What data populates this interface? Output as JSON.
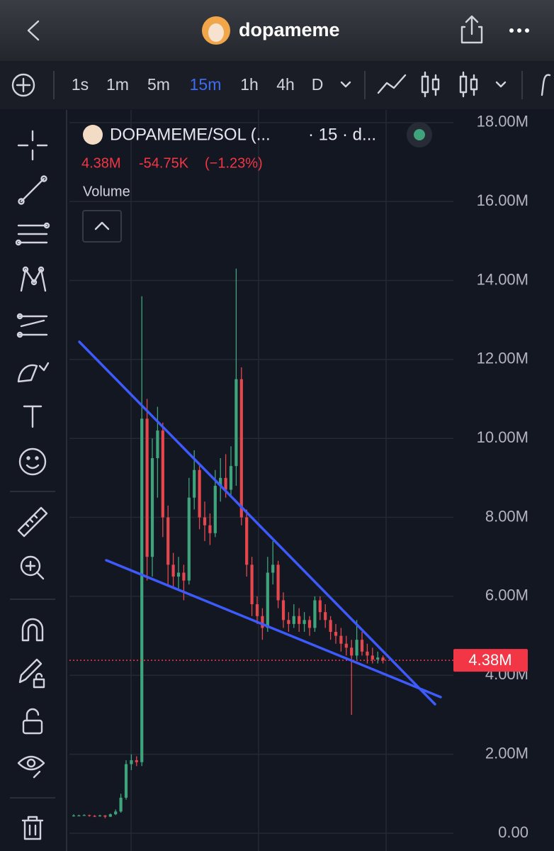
{
  "app": {
    "title": "dopameme",
    "timeframes": [
      "1s",
      "1m",
      "5m",
      "15m",
      "1h",
      "4h",
      "D"
    ],
    "active_timeframe": 3
  },
  "chart_header": {
    "symbol": "DOPAMEME/SOL (...",
    "interval": "· 15 · d...",
    "price": "4.38M",
    "change": "-54.75K",
    "change_percent": "(−1.23%)",
    "indicator": "Volume"
  },
  "chart_data": {
    "type": "candlestick",
    "up_color": "#3fa37c",
    "down_color": "#e5474d",
    "open": [
      440000,
      450000,
      450000,
      460000,
      440000,
      430000,
      450000,
      420000,
      480000,
      550000,
      900000,
      1750000,
      1850000,
      1800000,
      10500000,
      7000000,
      9500000,
      10200000,
      8000000,
      6800000,
      6500000,
      6600000,
      6400000,
      8500000,
      9200000,
      8000000,
      7800000,
      7600000,
      8800000,
      9000000,
      8700000,
      9300000,
      11500000,
      8000000,
      6800000,
      5800000,
      5500000,
      5200000,
      6600000,
      6800000,
      5900000,
      5400000,
      5300000,
      5500000,
      5300000,
      5400000,
      5200000,
      5900000,
      5600000,
      5400000,
      5100000,
      5000000,
      4800000,
      4700000,
      4500000,
      4900000,
      4600000,
      4500000,
      4400000,
      4450000
    ],
    "high": [
      480000,
      470000,
      480000,
      470000,
      460000,
      470000,
      460000,
      500000,
      600000,
      1000000,
      1850000,
      2000000,
      1950000,
      13600000,
      11000000,
      10000000,
      10800000,
      10400000,
      8300000,
      7100000,
      7000000,
      6800000,
      9000000,
      9700000,
      9300000,
      8400000,
      8100000,
      9200000,
      9500000,
      9600000,
      9800000,
      14300000,
      11800000,
      8200000,
      7000000,
      6000000,
      5700000,
      7000000,
      7400000,
      6900000,
      6100000,
      5600000,
      5800000,
      5700000,
      5600000,
      5500000,
      6000000,
      6000000,
      5800000,
      5500000,
      5300000,
      5200000,
      5000000,
      4900000,
      5400000,
      5100000,
      4800000,
      4700000,
      4600000,
      4500000
    ],
    "low": [
      420000,
      430000,
      440000,
      420000,
      410000,
      420000,
      380000,
      410000,
      460000,
      520000,
      850000,
      1600000,
      1700000,
      1700000,
      6400000,
      6500000,
      8500000,
      7500000,
      6300000,
      6200000,
      6200000,
      5900000,
      6300000,
      8200000,
      7700000,
      7400000,
      7300000,
      7500000,
      8400000,
      8500000,
      8500000,
      8800000,
      7800000,
      6500000,
      5500000,
      5300000,
      4900000,
      5100000,
      6300000,
      5700000,
      5200000,
      5100000,
      5200000,
      5100000,
      5100000,
      5000000,
      5100000,
      5400000,
      5200000,
      4900000,
      4800000,
      4600000,
      4500000,
      3000000,
      4400000,
      4500000,
      4300000,
      4300000,
      4300000,
      4300000
    ],
    "close": [
      450000,
      450000,
      460000,
      440000,
      430000,
      450000,
      420000,
      480000,
      550000,
      900000,
      1750000,
      1850000,
      1800000,
      10500000,
      7000000,
      9500000,
      10200000,
      8000000,
      6800000,
      6500000,
      6600000,
      6400000,
      8500000,
      9200000,
      8000000,
      7800000,
      7600000,
      8800000,
      9000000,
      8700000,
      9300000,
      11500000,
      8000000,
      6800000,
      5800000,
      5500000,
      5200000,
      6600000,
      6800000,
      5900000,
      5400000,
      5300000,
      5500000,
      5300000,
      5400000,
      5200000,
      5900000,
      5600000,
      5400000,
      5100000,
      5000000,
      4800000,
      4700000,
      4500000,
      4900000,
      4600000,
      4500000,
      4400000,
      4450000,
      4380000
    ],
    "ylim": [
      -450000,
      18320000
    ],
    "yticks": [
      {
        "value": 0,
        "label": "0.00"
      },
      {
        "value": 2000000,
        "label": "2.00M"
      },
      {
        "value": 4000000,
        "label": "4.00M"
      },
      {
        "value": 6000000,
        "label": "6.00M"
      },
      {
        "value": 8000000,
        "label": "8.00M"
      },
      {
        "value": 10000000,
        "label": "10.00M"
      },
      {
        "value": 12000000,
        "label": "12.00M"
      },
      {
        "value": 14000000,
        "label": "14.00M"
      },
      {
        "value": 16000000,
        "label": "16.00M"
      },
      {
        "value": 18000000,
        "label": "18.00M"
      }
    ],
    "grid": true,
    "last_price": {
      "value": 4380000,
      "label": "4.38M"
    },
    "last_price_color": "#f23645"
  }
}
